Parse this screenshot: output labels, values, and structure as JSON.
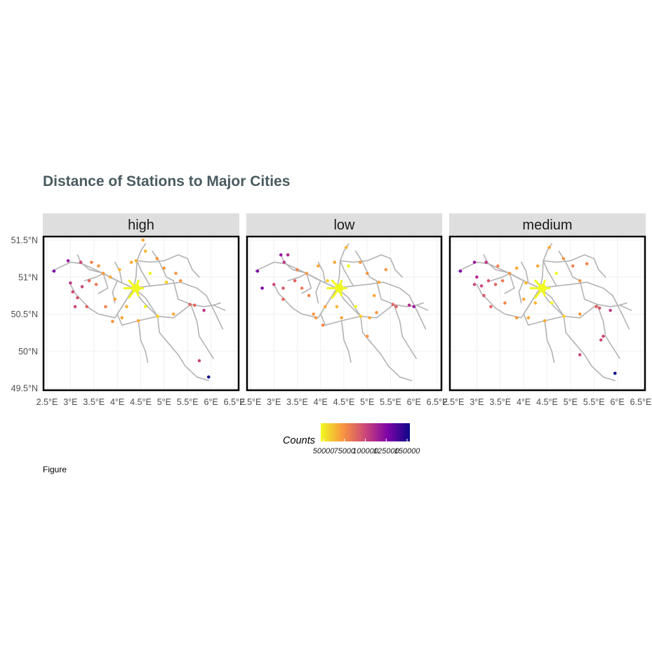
{
  "title": "Distance of Stations to Major Cities",
  "caption": "Figure",
  "chart_data": {
    "type": "map",
    "panels": [
      "high",
      "low",
      "medium"
    ],
    "x_ticks": [
      "2.5°E",
      "3°E",
      "3.5°E",
      "4°E",
      "4.5°E",
      "5°E",
      "5.5°E",
      "6°E",
      "6.5°E"
    ],
    "x_tick_values": [
      2.5,
      3.0,
      3.5,
      4.0,
      4.5,
      5.0,
      5.5,
      6.0,
      6.5
    ],
    "y_ticks": [
      "51.5°N",
      "51°N",
      "50.5°N",
      "50°N",
      "49.5°N"
    ],
    "y_tick_values": [
      51.5,
      51.0,
      50.5,
      50.0,
      49.5
    ],
    "xlim": [
      2.5,
      6.5
    ],
    "ylim": [
      49.45,
      51.55
    ],
    "legend": {
      "title": "Counts",
      "labels": [
        "50000",
        "75000",
        "100000",
        "125000",
        "150000"
      ],
      "values": [
        50000,
        75000,
        100000,
        125000,
        150000
      ],
      "colors": [
        "#f0f921",
        "#f89540",
        "#cc4778",
        "#7e03a8",
        "#0d0887"
      ],
      "placement": "bottom"
    },
    "colors": {
      "rail": "#b3b3b3",
      "strip": "#dedede",
      "title": "#4a5b60"
    },
    "rail_lines": [
      [
        [
          2.6,
          51.08
        ],
        [
          3.0,
          51.2
        ],
        [
          3.25,
          51.18
        ],
        [
          3.7,
          51.05
        ],
        [
          4.0,
          50.95
        ],
        [
          4.35,
          50.85
        ]
      ],
      [
        [
          3.15,
          51.3
        ],
        [
          3.22,
          51.2
        ],
        [
          3.4,
          51.1
        ],
        [
          3.72,
          51.05
        ]
      ],
      [
        [
          3.7,
          51.05
        ],
        [
          3.9,
          50.98
        ],
        [
          4.1,
          50.92
        ],
        [
          4.35,
          50.85
        ]
      ],
      [
        [
          4.35,
          50.85
        ],
        [
          4.4,
          51.0
        ],
        [
          4.42,
          51.22
        ],
        [
          4.5,
          51.35
        ],
        [
          4.6,
          51.45
        ]
      ],
      [
        [
          4.42,
          51.22
        ],
        [
          4.7,
          51.2
        ],
        [
          5.0,
          51.22
        ],
        [
          5.3,
          51.3
        ]
      ],
      [
        [
          4.42,
          51.22
        ],
        [
          4.5,
          51.1
        ],
        [
          4.7,
          50.88
        ],
        [
          5.0,
          50.9
        ],
        [
          5.35,
          50.93
        ],
        [
          5.7,
          50.85
        ],
        [
          5.9,
          50.75
        ]
      ],
      [
        [
          4.35,
          50.85
        ],
        [
          4.7,
          50.88
        ]
      ],
      [
        [
          4.35,
          50.85
        ],
        [
          4.6,
          50.72
        ],
        [
          4.86,
          50.47
        ],
        [
          5.2,
          50.45
        ],
        [
          5.57,
          50.63
        ]
      ],
      [
        [
          5.57,
          50.63
        ],
        [
          5.85,
          50.6
        ],
        [
          6.05,
          50.62
        ],
        [
          6.2,
          50.65
        ]
      ],
      [
        [
          5.57,
          50.63
        ],
        [
          5.7,
          50.4
        ],
        [
          5.75,
          50.2
        ],
        [
          5.9,
          50.05
        ],
        [
          6.05,
          49.9
        ]
      ],
      [
        [
          4.35,
          50.85
        ],
        [
          4.2,
          50.7
        ],
        [
          4.0,
          50.5
        ],
        [
          4.1,
          50.35
        ],
        [
          4.45,
          50.41
        ],
        [
          4.86,
          50.47
        ]
      ],
      [
        [
          4.35,
          50.85
        ],
        [
          3.95,
          50.45
        ],
        [
          3.6,
          50.5
        ],
        [
          3.4,
          50.58
        ]
      ],
      [
        [
          3.4,
          50.58
        ],
        [
          3.25,
          50.68
        ],
        [
          3.1,
          50.78
        ],
        [
          3.0,
          50.9
        ]
      ],
      [
        [
          4.86,
          50.47
        ],
        [
          4.9,
          50.25
        ],
        [
          5.1,
          50.1
        ],
        [
          5.3,
          49.95
        ],
        [
          5.45,
          49.8
        ],
        [
          5.7,
          49.65
        ],
        [
          5.95,
          49.6
        ]
      ],
      [
        [
          4.45,
          50.41
        ],
        [
          4.5,
          50.15
        ],
        [
          4.6,
          50.0
        ],
        [
          4.65,
          49.85
        ]
      ],
      [
        [
          3.7,
          51.05
        ],
        [
          3.8,
          50.85
        ],
        [
          3.6,
          50.78
        ]
      ],
      [
        [
          4.1,
          50.92
        ],
        [
          4.05,
          51.08
        ],
        [
          3.95,
          51.2
        ]
      ],
      [
        [
          4.75,
          51.35
        ],
        [
          4.9,
          51.2
        ],
        [
          5.05,
          51.0
        ],
        [
          5.2,
          50.95
        ]
      ],
      [
        [
          5.2,
          50.95
        ],
        [
          5.3,
          50.7
        ],
        [
          5.57,
          50.63
        ]
      ],
      [
        [
          5.9,
          50.75
        ],
        [
          6.1,
          50.5
        ],
        [
          6.25,
          50.3
        ]
      ],
      [
        [
          6.05,
          50.62
        ],
        [
          6.3,
          50.55
        ]
      ],
      [
        [
          3.3,
          50.95
        ],
        [
          3.55,
          51.0
        ],
        [
          3.7,
          51.05
        ]
      ],
      [
        [
          4.0,
          50.95
        ],
        [
          3.9,
          50.8
        ],
        [
          3.95,
          50.65
        ]
      ],
      [
        [
          4.86,
          50.47
        ],
        [
          4.65,
          50.6
        ],
        [
          4.5,
          50.7
        ],
        [
          4.35,
          50.85
        ]
      ],
      [
        [
          5.3,
          51.3
        ],
        [
          5.5,
          51.25
        ],
        [
          5.6,
          51.1
        ],
        [
          5.75,
          51.0
        ]
      ]
    ],
    "hub": [
      [
        4.25,
        50.95
      ],
      [
        4.45,
        50.95
      ],
      [
        4.55,
        50.85
      ],
      [
        4.45,
        50.75
      ],
      [
        4.25,
        50.72
      ],
      [
        4.15,
        50.85
      ]
    ],
    "stations": {
      "high": [
        [
          2.65,
          51.08,
          "#7e03a8"
        ],
        [
          2.95,
          51.22,
          "#9c179e"
        ],
        [
          3.22,
          51.2,
          "#cc4778"
        ],
        [
          3.0,
          50.92,
          "#bd3786"
        ],
        [
          3.05,
          50.8,
          "#cc4778"
        ],
        [
          3.25,
          50.87,
          "#cc4778"
        ],
        [
          3.4,
          50.95,
          "#e16462"
        ],
        [
          3.55,
          50.9,
          "#ed7953"
        ],
        [
          3.15,
          50.72,
          "#d8576b"
        ],
        [
          3.1,
          50.6,
          "#cc4778"
        ],
        [
          3.35,
          50.6,
          "#e16462"
        ],
        [
          3.75,
          50.6,
          "#f2844b"
        ],
        [
          3.9,
          50.4,
          "#f89540"
        ],
        [
          4.1,
          50.45,
          "#fca636"
        ],
        [
          4.45,
          50.41,
          "#fca636"
        ],
        [
          4.86,
          50.47,
          "#fcce25"
        ],
        [
          5.2,
          50.5,
          "#fca636"
        ],
        [
          5.55,
          50.63,
          "#e16462"
        ],
        [
          5.65,
          50.62,
          "#e16462"
        ],
        [
          5.85,
          50.55,
          "#bd3786"
        ],
        [
          5.75,
          49.87,
          "#cc4778"
        ],
        [
          5.95,
          49.65,
          "#0d0887"
        ],
        [
          4.55,
          51.5,
          "#fca636"
        ],
        [
          4.6,
          51.35,
          "#fdb42f"
        ],
        [
          4.85,
          51.25,
          "#f89540"
        ],
        [
          5.0,
          51.12,
          "#f89540"
        ],
        [
          5.25,
          51.05,
          "#f89540"
        ],
        [
          5.35,
          50.95,
          "#f89540"
        ],
        [
          5.05,
          50.93,
          "#fcce25"
        ],
        [
          4.7,
          51.05,
          "#f0f921"
        ],
        [
          3.7,
          51.05,
          "#f89540"
        ],
        [
          3.85,
          51.0,
          "#fca636"
        ],
        [
          3.6,
          51.15,
          "#f89540"
        ],
        [
          4.05,
          51.1,
          "#fdb42f"
        ],
        [
          4.2,
          50.6,
          "#fdb42f"
        ],
        [
          4.6,
          50.6,
          "#f0f921"
        ],
        [
          3.95,
          50.7,
          "#fca636"
        ],
        [
          4.3,
          51.2,
          "#fca636"
        ],
        [
          4.4,
          51.22,
          "#fdb42f"
        ],
        [
          3.45,
          51.2,
          "#f2844b"
        ]
      ],
      "low": [
        [
          2.65,
          51.08,
          "#7e03a8"
        ],
        [
          2.75,
          50.85,
          "#7e03a8"
        ],
        [
          3.15,
          51.3,
          "#9c179e"
        ],
        [
          3.22,
          51.2,
          "#bd3786"
        ],
        [
          3.3,
          51.3,
          "#b12a90"
        ],
        [
          3.0,
          50.9,
          "#cc4778"
        ],
        [
          3.2,
          50.85,
          "#d8576b"
        ],
        [
          3.45,
          50.95,
          "#e16462"
        ],
        [
          3.6,
          50.85,
          "#ed7953"
        ],
        [
          3.2,
          50.7,
          "#e16462"
        ],
        [
          3.75,
          50.75,
          "#f2844b"
        ],
        [
          3.85,
          50.5,
          "#f89540"
        ],
        [
          3.9,
          50.45,
          "#f89540"
        ],
        [
          4.1,
          50.6,
          "#fca636"
        ],
        [
          4.45,
          50.45,
          "#fca636"
        ],
        [
          4.86,
          50.47,
          "#fcce25"
        ],
        [
          5.05,
          50.45,
          "#fca636"
        ],
        [
          5.2,
          50.52,
          "#f89540"
        ],
        [
          5.55,
          50.63,
          "#e16462"
        ],
        [
          5.62,
          50.6,
          "#e16462"
        ],
        [
          5.9,
          50.62,
          "#b12a90"
        ],
        [
          6.0,
          50.6,
          "#9c179e"
        ],
        [
          5.0,
          50.2,
          "#f89540"
        ],
        [
          4.6,
          51.15,
          "#f0f921"
        ],
        [
          4.85,
          51.2,
          "#f89540"
        ],
        [
          5.0,
          51.05,
          "#f89540"
        ],
        [
          5.25,
          50.93,
          "#fca636"
        ],
        [
          5.4,
          51.1,
          "#f89540"
        ],
        [
          4.3,
          51.2,
          "#fca636"
        ],
        [
          4.55,
          51.4,
          "#fdb42f"
        ],
        [
          3.7,
          51.05,
          "#f89540"
        ],
        [
          3.95,
          51.15,
          "#fca636"
        ],
        [
          4.15,
          50.95,
          "#fcce25"
        ],
        [
          4.05,
          50.35,
          "#f2844b"
        ],
        [
          4.35,
          50.6,
          "#fdb42f"
        ],
        [
          4.75,
          50.6,
          "#f0f921"
        ],
        [
          3.5,
          51.1,
          "#f2844b"
        ],
        [
          5.15,
          50.75,
          "#fca636"
        ]
      ],
      "medium": [
        [
          2.65,
          51.08,
          "#7e03a8"
        ],
        [
          2.95,
          51.2,
          "#9c179e"
        ],
        [
          3.2,
          51.2,
          "#bd3786"
        ],
        [
          3.0,
          51.0,
          "#b12a90"
        ],
        [
          2.95,
          50.9,
          "#cc4778"
        ],
        [
          3.1,
          50.88,
          "#cc4778"
        ],
        [
          3.25,
          50.95,
          "#d8576b"
        ],
        [
          3.4,
          50.9,
          "#e16462"
        ],
        [
          3.55,
          50.95,
          "#ed7953"
        ],
        [
          3.15,
          50.75,
          "#d8576b"
        ],
        [
          3.3,
          50.6,
          "#e16462"
        ],
        [
          3.6,
          50.65,
          "#f2844b"
        ],
        [
          3.85,
          50.45,
          "#f89540"
        ],
        [
          4.1,
          50.45,
          "#fca636"
        ],
        [
          4.45,
          50.41,
          "#fca636"
        ],
        [
          4.86,
          50.47,
          "#fcce25"
        ],
        [
          5.2,
          50.5,
          "#f89540"
        ],
        [
          5.55,
          50.6,
          "#e16462"
        ],
        [
          5.62,
          50.58,
          "#d8576b"
        ],
        [
          5.85,
          50.55,
          "#bd3786"
        ],
        [
          5.7,
          50.2,
          "#cc4778"
        ],
        [
          5.65,
          50.15,
          "#cc4778"
        ],
        [
          5.2,
          49.95,
          "#cc4778"
        ],
        [
          5.95,
          49.7,
          "#0d0887"
        ],
        [
          4.55,
          51.4,
          "#fca636"
        ],
        [
          4.85,
          51.25,
          "#f89540"
        ],
        [
          5.05,
          51.15,
          "#f2844b"
        ],
        [
          5.35,
          51.18,
          "#f2844b"
        ],
        [
          5.2,
          50.95,
          "#f89540"
        ],
        [
          4.7,
          51.05,
          "#f0f921"
        ],
        [
          3.7,
          51.05,
          "#f89540"
        ],
        [
          3.85,
          51.12,
          "#fca636"
        ],
        [
          4.05,
          50.92,
          "#fdb42f"
        ],
        [
          4.25,
          50.65,
          "#fdb42f"
        ],
        [
          4.6,
          50.65,
          "#f0f921"
        ],
        [
          4.0,
          50.7,
          "#fca636"
        ],
        [
          4.3,
          51.15,
          "#fca636"
        ],
        [
          3.45,
          51.15,
          "#f2844b"
        ]
      ]
    }
  }
}
